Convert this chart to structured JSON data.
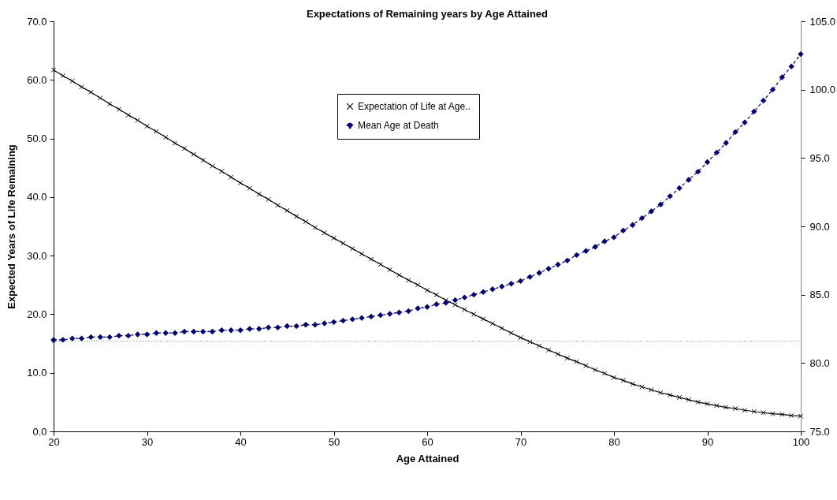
{
  "chart_data": {
    "type": "line",
    "title": "Expectations of Remaining years by Age Attained",
    "xlabel": "Age Attained",
    "ylabel": "Expected Years of Life Remaining",
    "x": [
      20,
      21,
      22,
      23,
      24,
      25,
      26,
      27,
      28,
      29,
      30,
      31,
      32,
      33,
      34,
      35,
      36,
      37,
      38,
      39,
      40,
      41,
      42,
      43,
      44,
      45,
      46,
      47,
      48,
      49,
      50,
      51,
      52,
      53,
      54,
      55,
      56,
      57,
      58,
      59,
      60,
      61,
      62,
      63,
      64,
      65,
      66,
      67,
      68,
      69,
      70,
      71,
      72,
      73,
      74,
      75,
      76,
      77,
      78,
      79,
      80,
      81,
      82,
      83,
      84,
      85,
      86,
      87,
      88,
      89,
      90,
      91,
      92,
      93,
      94,
      95,
      96,
      97,
      98,
      99,
      100
    ],
    "series": [
      {
        "name": "Expectation of Life at Age..",
        "color": "#000000",
        "marker": "cross",
        "line_style": "solid",
        "values": [
          61.7,
          60.7,
          59.8,
          58.8,
          57.9,
          56.9,
          55.9,
          55.0,
          54.0,
          53.1,
          52.1,
          51.2,
          50.2,
          49.2,
          48.3,
          47.3,
          46.3,
          45.3,
          44.4,
          43.4,
          42.4,
          41.5,
          40.5,
          39.6,
          38.6,
          37.7,
          36.7,
          35.8,
          34.8,
          33.9,
          33.0,
          32.1,
          31.2,
          30.3,
          29.4,
          28.5,
          27.6,
          26.7,
          25.8,
          25.0,
          24.1,
          23.3,
          22.4,
          21.6,
          20.8,
          20.0,
          19.2,
          18.4,
          17.6,
          16.8,
          16.0,
          15.3,
          14.6,
          13.9,
          13.2,
          12.5,
          11.9,
          11.2,
          10.5,
          9.9,
          9.2,
          8.7,
          8.1,
          7.6,
          7.1,
          6.6,
          6.2,
          5.8,
          5.4,
          5.0,
          4.7,
          4.4,
          4.1,
          3.9,
          3.6,
          3.4,
          3.2,
          3.0,
          2.9,
          2.7,
          2.6
        ]
      },
      {
        "name": "Mean Age at Death",
        "color": "#000080",
        "marker": "diamond",
        "line_style": "dashed",
        "axis": "y2",
        "values": [
          81.7,
          81.7,
          81.8,
          81.8,
          81.9,
          81.9,
          81.9,
          82.0,
          82.0,
          82.1,
          82.1,
          82.2,
          82.2,
          82.2,
          82.3,
          82.3,
          82.3,
          82.3,
          82.4,
          82.4,
          82.4,
          82.5,
          82.5,
          82.6,
          82.6,
          82.7,
          82.7,
          82.8,
          82.8,
          82.9,
          83.0,
          83.1,
          83.2,
          83.3,
          83.4,
          83.5,
          83.6,
          83.7,
          83.8,
          84.0,
          84.1,
          84.3,
          84.4,
          84.6,
          84.8,
          85.0,
          85.2,
          85.4,
          85.6,
          85.8,
          86.0,
          86.3,
          86.6,
          86.9,
          87.2,
          87.5,
          87.9,
          88.2,
          88.5,
          88.9,
          89.2,
          89.7,
          90.1,
          90.6,
          91.1,
          91.6,
          92.2,
          92.8,
          93.4,
          94.0,
          94.7,
          95.4,
          96.1,
          96.9,
          97.6,
          98.4,
          99.2,
          100.0,
          100.9,
          101.7,
          102.6
        ]
      }
    ],
    "xlim": [
      20,
      100
    ],
    "xticks": [
      20,
      30,
      40,
      50,
      60,
      70,
      80,
      90,
      100
    ],
    "ylim": [
      0,
      70
    ],
    "yticks": [
      {
        "value": 0,
        "label": "0.0"
      },
      {
        "value": 10,
        "label": "10.0"
      },
      {
        "value": 20,
        "label": "20.0"
      },
      {
        "value": 30,
        "label": "30.0"
      },
      {
        "value": 40,
        "label": "40.0"
      },
      {
        "value": 50,
        "label": "50.0"
      },
      {
        "value": 60,
        "label": "60.0"
      },
      {
        "value": 70,
        "label": "70.0"
      }
    ],
    "y2lim": [
      75,
      105
    ],
    "y2ticks": [
      {
        "value": 75,
        "label": "75.0"
      },
      {
        "value": 80,
        "label": "80.0"
      },
      {
        "value": 85,
        "label": "85.0"
      },
      {
        "value": 90,
        "label": "90.0"
      },
      {
        "value": 95,
        "label": "95.0"
      },
      {
        "value": 100,
        "label": "100.0"
      },
      {
        "value": 105,
        "label": "105.0"
      }
    ],
    "ref_lines": [
      {
        "axis": "y2",
        "value": 81.6,
        "color": "#808080",
        "line_style": "dotted"
      }
    ],
    "legend": "top",
    "grid": false
  }
}
